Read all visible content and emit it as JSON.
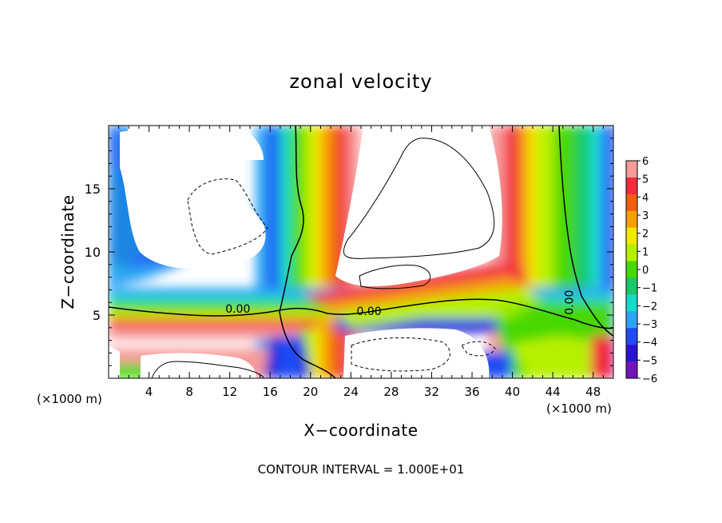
{
  "chart_data": {
    "type": "heatmap",
    "title": "zonal velocity",
    "xlabel": "X−coordinate",
    "ylabel": "Z−coordinate",
    "x_unit_left": "(×1000 m)",
    "x_unit_right": "(×1000 m)",
    "footer": "CONTOUR INTERVAL = 1.000E+01",
    "xlim": [
      0,
      50
    ],
    "ylim": [
      0,
      20
    ],
    "x_ticks": [
      "4",
      "8",
      "12",
      "16",
      "20",
      "24",
      "28",
      "32",
      "36",
      "40",
      "44",
      "48"
    ],
    "x_tick_values": [
      4,
      8,
      12,
      16,
      20,
      24,
      28,
      32,
      36,
      40,
      44,
      48
    ],
    "y_ticks": [
      "5",
      "10",
      "15"
    ],
    "y_tick_values": [
      5,
      10,
      15
    ],
    "contour_labels": [
      {
        "text": "0.00",
        "x": 12.8,
        "y": 5.2
      },
      {
        "text": "0.00",
        "x": 25.8,
        "y": 5.0
      },
      {
        "text": "0.00",
        "x": 46.0,
        "y": 6.0
      }
    ],
    "colorbar": {
      "min": -6,
      "max": 6,
      "labels": [
        "6",
        "5",
        "4",
        "3",
        "2",
        "1",
        "0",
        "−1",
        "−2",
        "−3",
        "−4",
        "−5",
        "−6"
      ],
      "colors": [
        "#f79a9a",
        "#f32b3e",
        "#f25e10",
        "#f5a000",
        "#f1e800",
        "#b6f000",
        "#46d800",
        "#18c86a",
        "#14dcc8",
        "#2fa4f5",
        "#1f4cf5",
        "#2a13d0",
        "#7016b8"
      ]
    },
    "field_description_sample": [
      {
        "z_range": [
          0,
          20
        ],
        "x": 47,
        "value": 0
      },
      {
        "z_range": [
          0,
          20
        ],
        "x": 43,
        "value": 6
      },
      {
        "z_range": [
          10,
          20
        ],
        "x": 29,
        "value": 6
      },
      {
        "z_range": [
          10,
          20
        ],
        "x": 8,
        "value": 6
      }
    ]
  }
}
